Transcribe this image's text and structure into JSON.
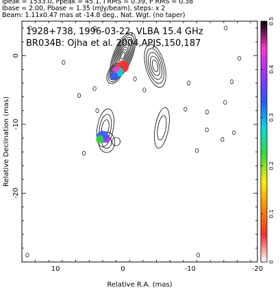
{
  "header": {
    "line1": "Ipeak = 1533.0, Ppeak = 45.1, I RMS = 0.39, P RMS = 0.38",
    "line2": "Ibase = 2.00, Pbase = 1.35 (mJy/beam), steps: x 2",
    "line3": "Beam: 1.11x0.47 mas at -14.8 deg., Nat. Wgt. (no taper)"
  },
  "chart_data": {
    "type": "contour",
    "title": "1928+738, 1996-03-22, VLBA 15.4 GHz",
    "subtitle": "BR034B: Ojha et al. 2004,APJS,150,187",
    "xlabel": "Relative R.A. (mas)",
    "ylabel": "Relative Declination (mas)",
    "xlim": [
      15,
      -20
    ],
    "ylim": [
      -30,
      5
    ],
    "xticks": [
      10,
      0,
      -10,
      -20
    ],
    "yticks": [
      0,
      -10,
      -20
    ],
    "colorbar": {
      "range": [
        0,
        0.5
      ],
      "ticks": [
        0,
        0.1,
        0.2,
        0.3,
        0.4,
        0.5
      ],
      "colors": [
        "#ffffff",
        "#ff2b2b",
        "#ff8a00",
        "#ffee00",
        "#33dd33",
        "#00dddd",
        "#2a55ff",
        "#9933ff",
        "#ff33cc",
        "#000000"
      ]
    },
    "components": [
      {
        "x": 0.0,
        "y": 0.0,
        "rx": 1.4,
        "ry": 3.6,
        "levels": 9,
        "angle": 22
      },
      {
        "x": 1.2,
        "y": -2.6,
        "rx": 1.0,
        "ry": 1.6,
        "levels": 5,
        "angle": 30
      },
      {
        "x": 2.6,
        "y": -10.5,
        "rx": 1.2,
        "ry": 2.8,
        "levels": 3,
        "angle": 10
      },
      {
        "x": 2.4,
        "y": -12.6,
        "rx": 1.2,
        "ry": 1.5,
        "levels": 2,
        "angle": 0
      },
      {
        "x": -4.8,
        "y": -1.5,
        "rx": 1.4,
        "ry": 3.2,
        "levels": 5,
        "angle": -15
      },
      {
        "x": -5.8,
        "y": -10.5,
        "rx": 1.0,
        "ry": 3.0,
        "levels": 2,
        "angle": 10
      },
      {
        "x": 1.0,
        "y": -12.5,
        "rx": 0.6,
        "ry": 0.6,
        "levels": 1,
        "angle": 0
      }
    ],
    "color_vectors": [
      {
        "x": 0.0,
        "y": -1.6,
        "r": 0.9,
        "value": 0.05
      },
      {
        "x": 0.6,
        "y": -2.4,
        "r": 0.7,
        "value": 0.25
      },
      {
        "x": 1.3,
        "y": -3.0,
        "r": 0.6,
        "value": 0.33
      },
      {
        "x": 1.0,
        "y": -2.0,
        "r": 0.5,
        "value": 0.42
      },
      {
        "x": 3.0,
        "y": -11.8,
        "r": 0.9,
        "value": 0.32
      },
      {
        "x": 3.4,
        "y": -12.2,
        "r": 0.6,
        "value": 0.24
      },
      {
        "x": 2.4,
        "y": -12.2,
        "r": 0.5,
        "value": 0.38
      }
    ],
    "noise_islands": [
      [
        13.8,
        4.0
      ],
      [
        8.8,
        -1.0
      ],
      [
        4.2,
        4.0
      ],
      [
        -15.3,
        4.0
      ],
      [
        -17.3,
        -0.4
      ],
      [
        -16.2,
        -3.8
      ],
      [
        -9.8,
        -4.0
      ],
      [
        -15.2,
        -6.8
      ],
      [
        -12.5,
        -8.2
      ],
      [
        -9.3,
        -7.8
      ],
      [
        4.2,
        -4.8
      ],
      [
        -3.2,
        -5.0
      ],
      [
        -12.5,
        -10.8
      ],
      [
        -14.8,
        -12.2
      ],
      [
        5.8,
        -14.2
      ],
      [
        6.5,
        -5.8
      ],
      [
        -1.8,
        -3.4
      ],
      [
        -16.5,
        -11.2
      ],
      [
        3.8,
        -8.0
      ],
      [
        -11.0,
        -13.8
      ],
      [
        14.2,
        -29.0
      ],
      [
        -11.2,
        -29.0
      ]
    ]
  }
}
